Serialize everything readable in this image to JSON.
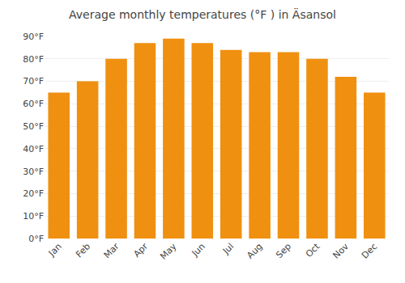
{
  "chart_data": {
    "type": "bar",
    "title": "Average monthly temperatures (°F ) in Ä​sansol",
    "categories": [
      "Jan",
      "Feb",
      "Mar",
      "Apr",
      "May",
      "Jun",
      "Jul",
      "Aug",
      "Sep",
      "Oct",
      "Nov",
      "Dec"
    ],
    "values": [
      65,
      70,
      80,
      87,
      89,
      87,
      84,
      83,
      83,
      80,
      72,
      65
    ],
    "color": "#F09010",
    "ylim": [
      0,
      90
    ],
    "yticks": [
      {
        "value": 0,
        "label": "0°F"
      },
      {
        "value": 10,
        "label": "10°F"
      },
      {
        "value": 20,
        "label": "20°F"
      },
      {
        "value": 30,
        "label": "30°F"
      },
      {
        "value": 40,
        "label": "40°F"
      },
      {
        "value": 50,
        "label": "50°F"
      },
      {
        "value": 60,
        "label": "60°F"
      },
      {
        "value": 70,
        "label": "70°F"
      },
      {
        "value": 80,
        "label": "80°F"
      },
      {
        "value": 90,
        "label": "90°F"
      }
    ],
    "grid": true
  }
}
